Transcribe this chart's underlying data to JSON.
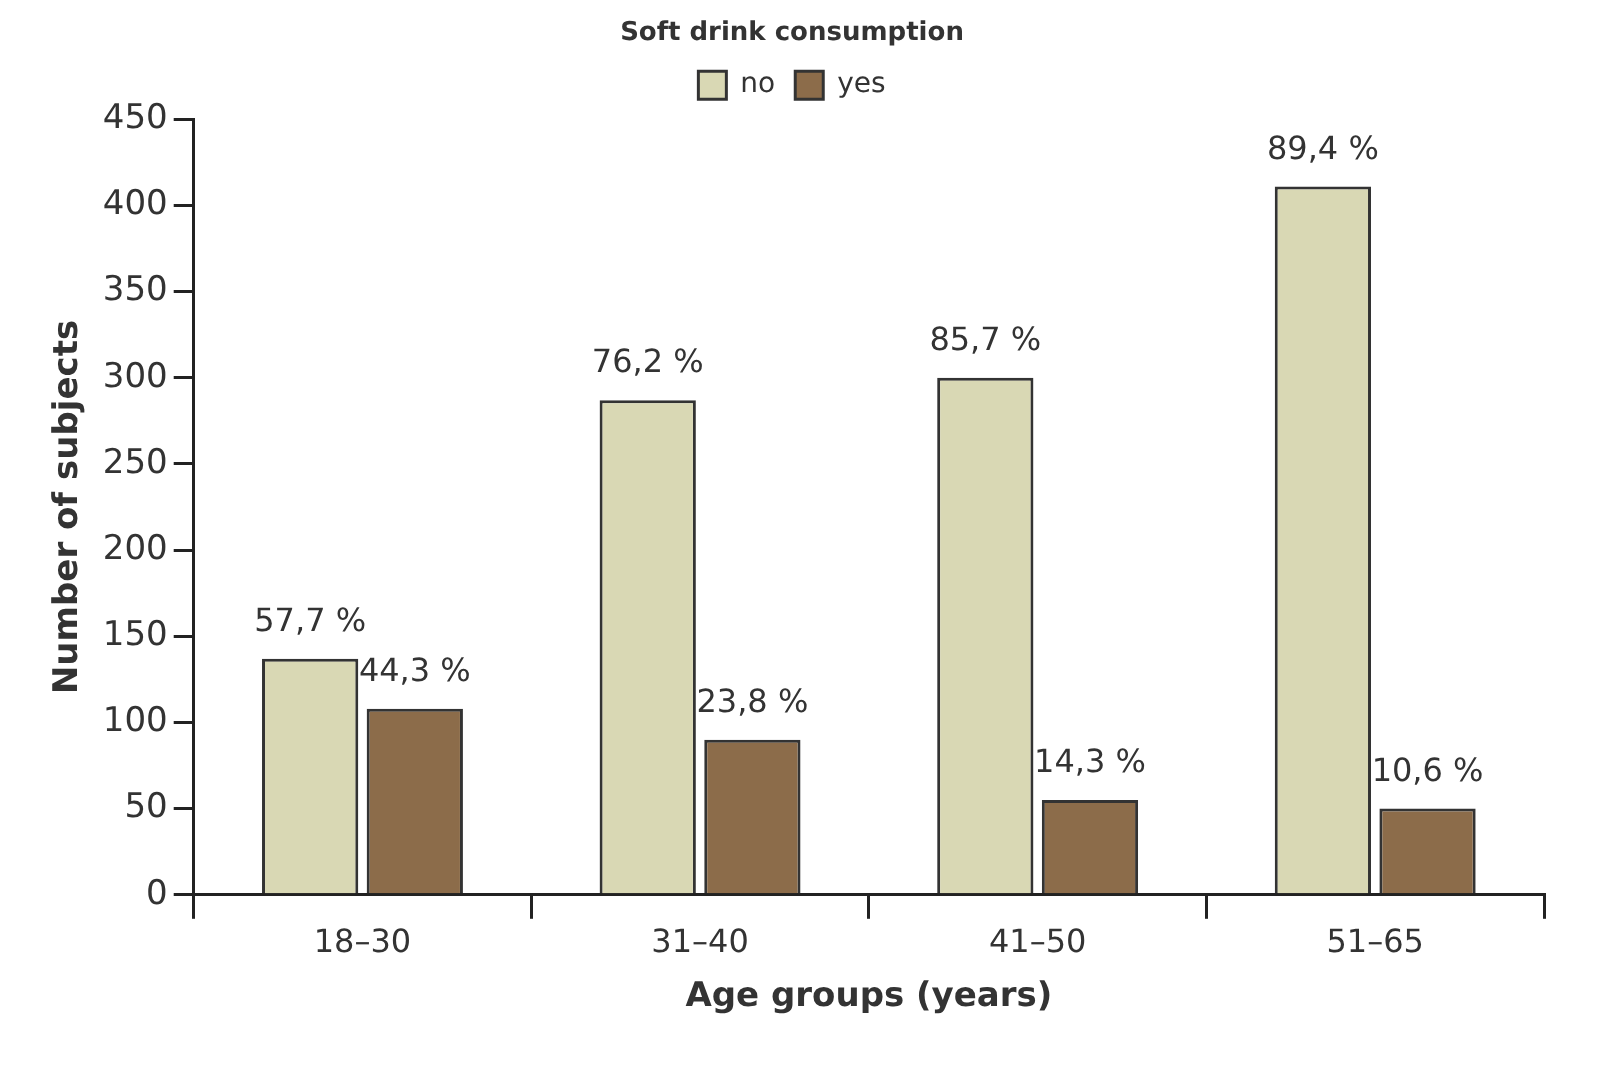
{
  "chart_data": {
    "type": "bar",
    "xlabel": "Age groups (years)",
    "ylabel": "Number of subjects",
    "legend_title": "Soft drink consumption",
    "categories": [
      "18–30",
      "31–40",
      "41–50",
      "51–65"
    ],
    "series": [
      {
        "name": "no",
        "color": "#d9d8b4",
        "values": [
          137,
          287,
          300,
          411
        ]
      },
      {
        "name": "yes",
        "color": "#8c6c4a",
        "values": [
          108,
          90,
          55,
          50
        ]
      }
    ],
    "annotations": [
      {
        "text": "57,7 %",
        "x": "18–30",
        "y": 137
      },
      {
        "text": "44,3 %",
        "x": "18–30",
        "y": 108
      },
      {
        "text": "76,2 %",
        "x": "31–40",
        "y": 287
      },
      {
        "text": "23,8 %",
        "x": "31–40",
        "y": 90
      },
      {
        "text": "85,7 %",
        "x": "41–50",
        "y": 300
      },
      {
        "text": "14,3 %",
        "x": "41–50",
        "y": 55
      },
      {
        "text": "89,4 %",
        "x": "51–65",
        "y": 411
      },
      {
        "text": "10,6 %",
        "x": "51–65",
        "y": 50
      }
    ],
    "ylim": [
      0,
      450
    ],
    "yticks": [
      0,
      50,
      100,
      150,
      200,
      250,
      300,
      350,
      400,
      450
    ],
    "grid": false,
    "legend": "top"
  }
}
